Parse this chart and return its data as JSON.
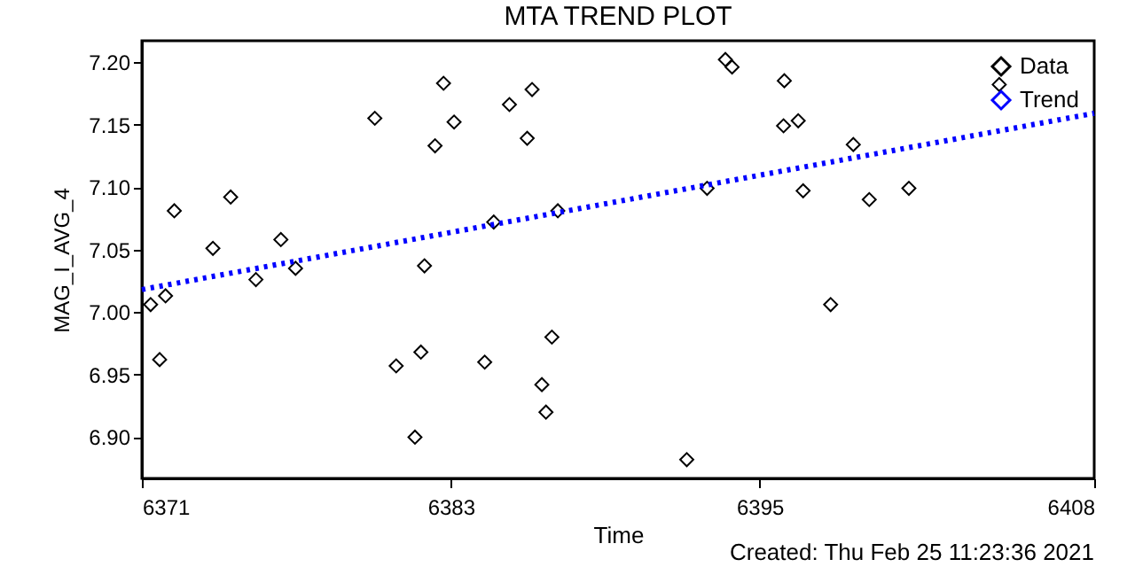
{
  "chart_data": {
    "type": "scatter",
    "title": "MTA TREND PLOT",
    "xlabel": "Time",
    "ylabel": "MAG_I_AVG_4",
    "annotations": [
      "Created: Thu Feb 25 11:23:36 2021"
    ],
    "xlim": [
      6371,
      6408
    ],
    "xticks": [
      6371,
      6383,
      6395,
      6408
    ],
    "ylim": [
      6.867,
      7.217
    ],
    "yticks": [
      {
        "value": 6.9,
        "label": "6.90"
      },
      {
        "value": 6.95,
        "label": "6.95"
      },
      {
        "value": 7.0,
        "label": "7.00"
      },
      {
        "value": 7.05,
        "label": "7.05"
      },
      {
        "value": 7.1,
        "label": "7.10"
      },
      {
        "value": 7.15,
        "label": "7.15"
      },
      {
        "value": 7.2,
        "label": "7.20"
      }
    ],
    "grid": false,
    "legend": "top right",
    "series": [
      {
        "name": "Data",
        "color": "#000000",
        "marker": "diamond",
        "x": [
          6371.34,
          6371.92,
          6371.69,
          6372.26,
          6373.76,
          6374.45,
          6375.43,
          6376.4,
          6376.97,
          6380.05,
          6380.88,
          6381.61,
          6381.84,
          6381.98,
          6382.39,
          6382.72,
          6383.13,
          6385.28,
          6386.16,
          6385.97,
          6384.67,
          6384.32,
          6387.16,
          6386.93,
          6386.54,
          6386.7,
          6392.17,
          6392.96,
          6393.67,
          6393.93,
          6395.96,
          6395.93,
          6396.5,
          6398.64,
          6396.69,
          6399.26,
          6400.8,
          6397.76,
          6404.31
        ],
        "values": [
          7.006,
          7.013,
          6.962,
          7.081,
          7.051,
          7.092,
          7.026,
          7.058,
          7.035,
          7.155,
          6.957,
          6.9,
          6.968,
          7.037,
          7.133,
          7.183,
          7.152,
          7.166,
          7.178,
          7.139,
          7.072,
          6.96,
          7.081,
          6.98,
          6.942,
          6.92,
          6.882,
          7.099,
          7.202,
          7.196,
          7.185,
          7.149,
          7.153,
          7.134,
          7.097,
          7.09,
          7.099,
          7.006,
          7.182
        ]
      },
      {
        "name": "Trend",
        "type": "line",
        "color": "#0000ff",
        "line_style": "dotted",
        "x": [
          6371,
          6408
        ],
        "values": [
          7.018,
          7.159
        ]
      }
    ]
  }
}
